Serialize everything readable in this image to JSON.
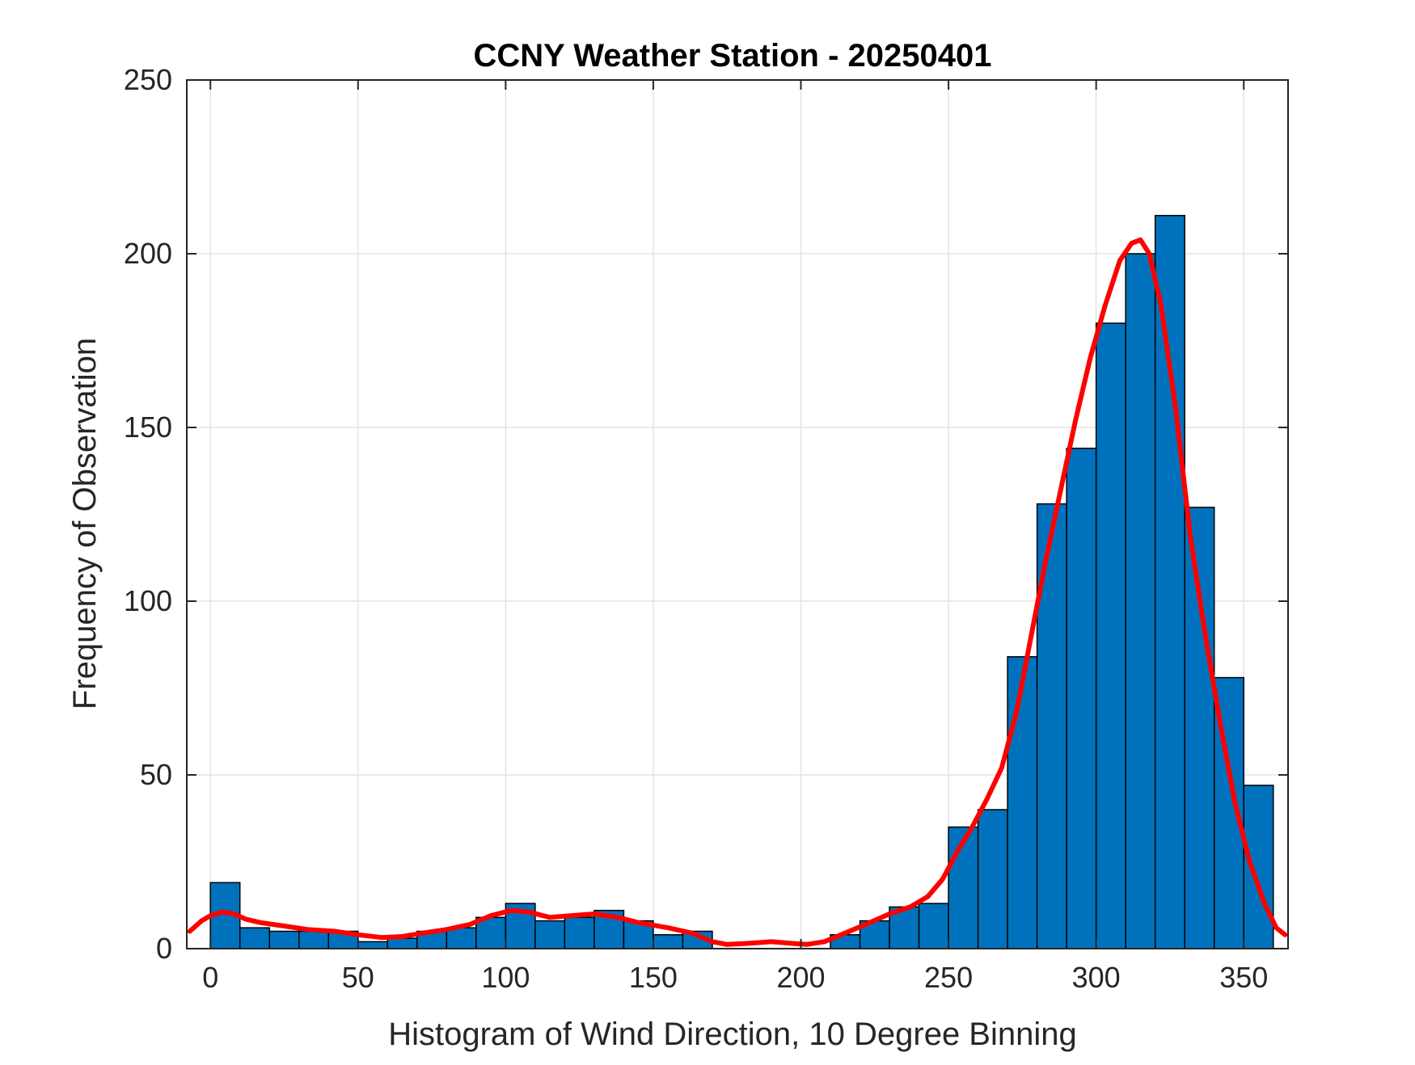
{
  "chart_data": {
    "type": "bar",
    "title": "CCNY Weather Station - 20250401",
    "xlabel": "Histogram of Wind Direction, 10 Degree Binning",
    "ylabel": "Frequency of Observation",
    "xlim": [
      -8,
      365
    ],
    "ylim": [
      0,
      250
    ],
    "grid": true,
    "x_ticks": [
      0,
      50,
      100,
      150,
      200,
      250,
      300,
      350
    ],
    "y_ticks": [
      0,
      50,
      100,
      150,
      200,
      250
    ],
    "bin_width": 10,
    "bins": [
      {
        "start": 0,
        "end": 10,
        "value": 19
      },
      {
        "start": 10,
        "end": 20,
        "value": 6
      },
      {
        "start": 20,
        "end": 30,
        "value": 5
      },
      {
        "start": 30,
        "end": 40,
        "value": 5
      },
      {
        "start": 40,
        "end": 50,
        "value": 5
      },
      {
        "start": 50,
        "end": 60,
        "value": 2
      },
      {
        "start": 60,
        "end": 70,
        "value": 3
      },
      {
        "start": 70,
        "end": 80,
        "value": 5
      },
      {
        "start": 80,
        "end": 90,
        "value": 6
      },
      {
        "start": 90,
        "end": 100,
        "value": 9
      },
      {
        "start": 100,
        "end": 110,
        "value": 13
      },
      {
        "start": 110,
        "end": 120,
        "value": 8
      },
      {
        "start": 120,
        "end": 130,
        "value": 9
      },
      {
        "start": 130,
        "end": 140,
        "value": 11
      },
      {
        "start": 140,
        "end": 150,
        "value": 8
      },
      {
        "start": 150,
        "end": 160,
        "value": 4
      },
      {
        "start": 160,
        "end": 170,
        "value": 5
      },
      {
        "start": 170,
        "end": 180,
        "value": 0
      },
      {
        "start": 180,
        "end": 190,
        "value": 0
      },
      {
        "start": 190,
        "end": 200,
        "value": 0
      },
      {
        "start": 200,
        "end": 210,
        "value": 0
      },
      {
        "start": 210,
        "end": 220,
        "value": 4
      },
      {
        "start": 220,
        "end": 230,
        "value": 8
      },
      {
        "start": 230,
        "end": 240,
        "value": 12
      },
      {
        "start": 240,
        "end": 250,
        "value": 13
      },
      {
        "start": 250,
        "end": 260,
        "value": 35
      },
      {
        "start": 260,
        "end": 270,
        "value": 40
      },
      {
        "start": 270,
        "end": 280,
        "value": 84
      },
      {
        "start": 280,
        "end": 290,
        "value": 128
      },
      {
        "start": 290,
        "end": 300,
        "value": 144
      },
      {
        "start": 300,
        "end": 310,
        "value": 180
      },
      {
        "start": 310,
        "end": 320,
        "value": 200
      },
      {
        "start": 320,
        "end": 330,
        "value": 211
      },
      {
        "start": 330,
        "end": 340,
        "value": 127
      },
      {
        "start": 340,
        "end": 350,
        "value": 78
      },
      {
        "start": 350,
        "end": 360,
        "value": 47
      }
    ],
    "fit_curve": {
      "color": "#ff0000",
      "points": [
        [
          -7,
          5
        ],
        [
          -3,
          8
        ],
        [
          0,
          9.5
        ],
        [
          4,
          10.5
        ],
        [
          8,
          10
        ],
        [
          12,
          8.5
        ],
        [
          17,
          7.5
        ],
        [
          25,
          6.5
        ],
        [
          33,
          5.5
        ],
        [
          42,
          5
        ],
        [
          50,
          4
        ],
        [
          58,
          3.2
        ],
        [
          65,
          3.5
        ],
        [
          72,
          4.5
        ],
        [
          80,
          5.5
        ],
        [
          88,
          7
        ],
        [
          95,
          9.5
        ],
        [
          102,
          11
        ],
        [
          108,
          10.5
        ],
        [
          115,
          9
        ],
        [
          122,
          9.5
        ],
        [
          130,
          10
        ],
        [
          138,
          9
        ],
        [
          145,
          7.5
        ],
        [
          155,
          6
        ],
        [
          163,
          4.5
        ],
        [
          170,
          2
        ],
        [
          175,
          1.2
        ],
        [
          182,
          1.5
        ],
        [
          190,
          2
        ],
        [
          197,
          1.5
        ],
        [
          202,
          1.2
        ],
        [
          208,
          2
        ],
        [
          215,
          4.5
        ],
        [
          222,
          7
        ],
        [
          230,
          10
        ],
        [
          237,
          12
        ],
        [
          243,
          15
        ],
        [
          248,
          20
        ],
        [
          253,
          28
        ],
        [
          258,
          35
        ],
        [
          263,
          43
        ],
        [
          268,
          52
        ],
        [
          273,
          68
        ],
        [
          278,
          90
        ],
        [
          283,
          112
        ],
        [
          288,
          132
        ],
        [
          293,
          152
        ],
        [
          298,
          170
        ],
        [
          303,
          185
        ],
        [
          308,
          198
        ],
        [
          312,
          203
        ],
        [
          315,
          204
        ],
        [
          318,
          200
        ],
        [
          322,
          185
        ],
        [
          327,
          155
        ],
        [
          332,
          118
        ],
        [
          337,
          90
        ],
        [
          342,
          65
        ],
        [
          347,
          42
        ],
        [
          352,
          25
        ],
        [
          357,
          13
        ],
        [
          361,
          6
        ],
        [
          364,
          4
        ]
      ]
    },
    "colors": {
      "bar_fill": "#0072bd",
      "bar_edge": "#000000",
      "grid": "#e3e3e3",
      "axis": "#262626"
    }
  }
}
